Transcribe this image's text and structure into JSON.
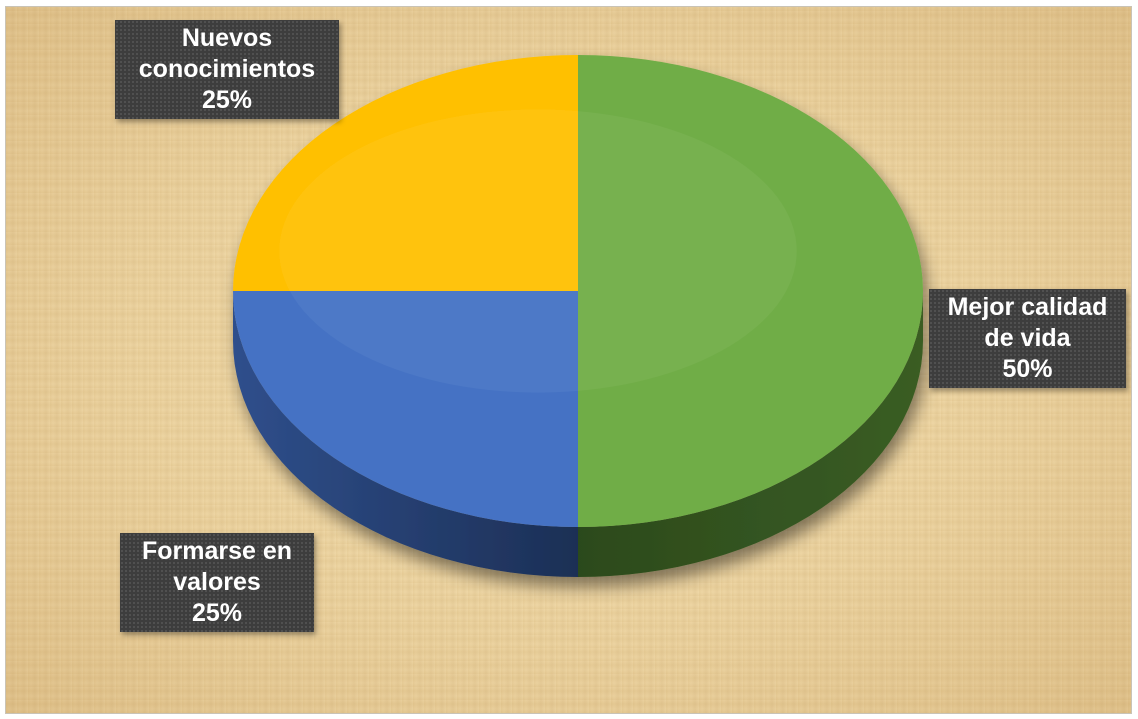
{
  "chart_data": {
    "type": "pie",
    "title": "",
    "categories": [
      "Mejor calidad de vida",
      "Formarse en valores",
      "Nuevos conocimientos"
    ],
    "values": [
      50,
      25,
      25
    ],
    "colors": [
      "#70ad47",
      "#4472c4",
      "#ffc000"
    ],
    "labels": [
      {
        "name_lines": [
          "Mejor calidad",
          "de vida"
        ],
        "value_text": "50%"
      },
      {
        "name_lines": [
          "Formarse en",
          "valores"
        ],
        "value_text": "25%"
      },
      {
        "name_lines": [
          "Nuevos",
          "conocimientos"
        ],
        "value_text": "25%"
      }
    ],
    "legend": "none",
    "style": "3d-pie"
  }
}
